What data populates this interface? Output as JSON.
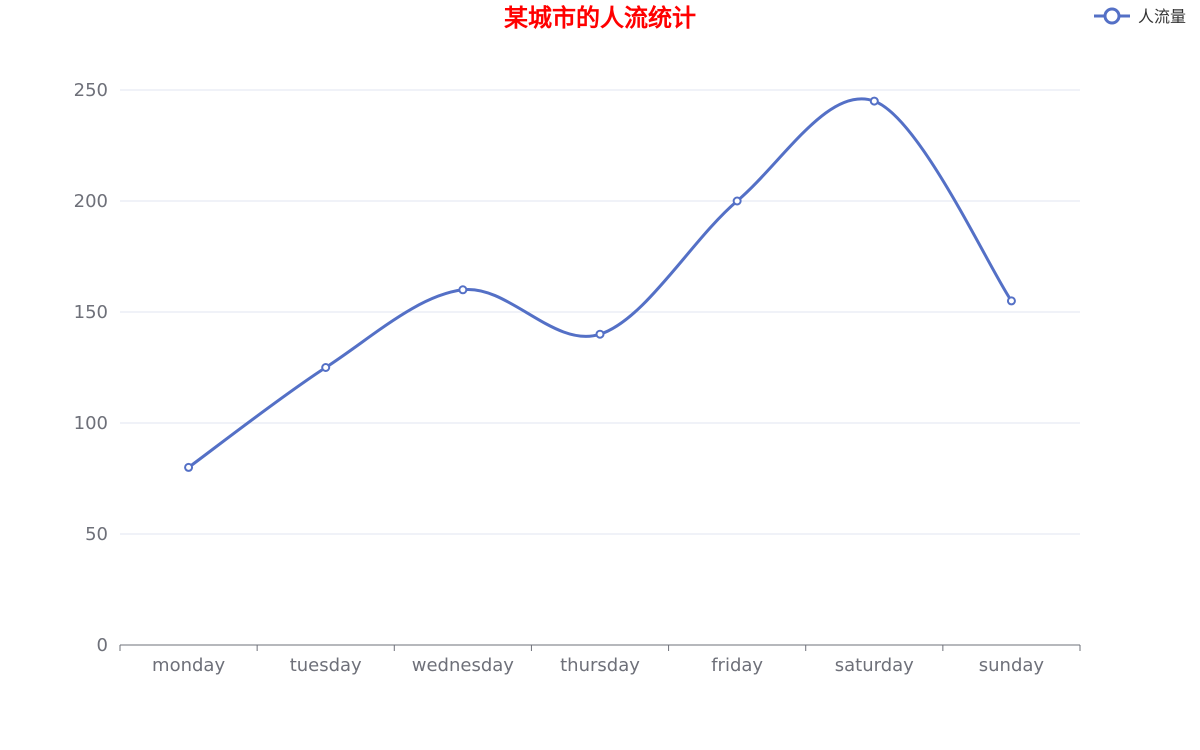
{
  "chart_data": {
    "type": "line",
    "title": "某城市的人流统计",
    "categories": [
      "monday",
      "tuesday",
      "wednesday",
      "thursday",
      "friday",
      "saturday",
      "sunday"
    ],
    "series": [
      {
        "name": "人流量",
        "values": [
          80,
          125,
          160,
          140,
          200,
          245,
          155
        ],
        "color": "#5470c6",
        "smooth": true
      }
    ],
    "ylim": [
      0,
      250
    ],
    "yticks": [
      0,
      50,
      100,
      150,
      200,
      250
    ],
    "grid": true,
    "legend_position": "top-right"
  },
  "colors": {
    "title": "#ff0000",
    "axis": "#6e7079",
    "grid": "#e0e6f1",
    "background": "#ffffff"
  }
}
